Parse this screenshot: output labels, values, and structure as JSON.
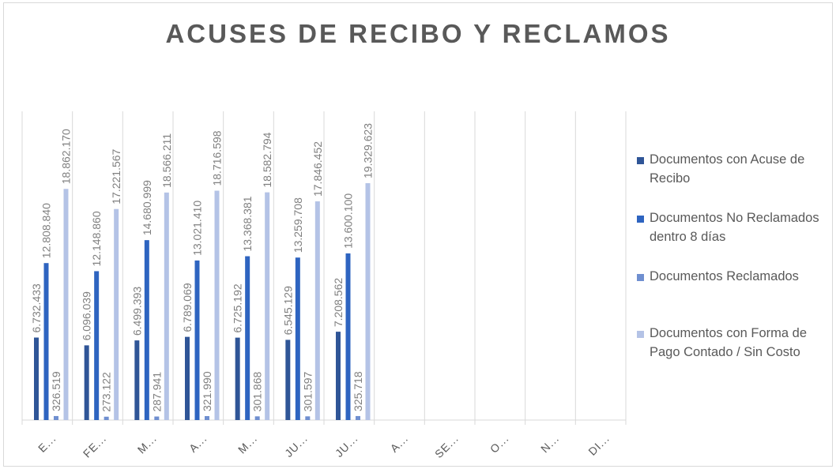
{
  "chart_data": {
    "type": "bar",
    "title": "ACUSES DE RECIBO Y RECLAMOS",
    "categories": [
      "E...",
      "FE...",
      "M...",
      "A...",
      "M...",
      "JU...",
      "JU...",
      "A...",
      "SE...",
      "O...",
      "N...",
      "DI..."
    ],
    "series": [
      {
        "name": "Documentos con Acuse de Recibo",
        "color": "#2f5597",
        "values": [
          6732433,
          6096039,
          6499393,
          6789069,
          6725192,
          6545129,
          7208562,
          null,
          null,
          null,
          null,
          null
        ],
        "labels": [
          "6.732.433",
          "6.096.039",
          "6.499.393",
          "6.789.069",
          "6.725.192",
          "6.545.129",
          "7.208.562",
          "",
          "",
          "",
          "",
          ""
        ]
      },
      {
        "name": "Documentos No Reclamados dentro 8 días",
        "color": "#2e64c0",
        "values": [
          12808840,
          12148860,
          14680999,
          13021410,
          13368381,
          13259708,
          13600100,
          null,
          null,
          null,
          null,
          null
        ],
        "labels": [
          "12.808.840",
          "12.148.860",
          "14.680.999",
          "13.021.410",
          "13.368.381",
          "13.259.708",
          "13.600.100",
          "",
          "",
          "",
          "",
          ""
        ]
      },
      {
        "name": "Documentos Reclamados",
        "color": "#6f8fd0",
        "values": [
          326519,
          273122,
          287941,
          321990,
          301868,
          301597,
          325718,
          null,
          null,
          null,
          null,
          null
        ],
        "labels": [
          "326.519",
          "273.122",
          "287.941",
          "321.990",
          "301.868",
          "301.597",
          "325.718",
          "",
          "",
          "",
          "",
          ""
        ]
      },
      {
        "name": "Documentos con Forma de Pago Contado / Sin Costo",
        "color": "#b4c3e6",
        "values": [
          18862170,
          17221567,
          18566211,
          18716598,
          18582794,
          17846452,
          19329623,
          null,
          null,
          null,
          null,
          null
        ],
        "labels": [
          "18.862.170",
          "17.221.567",
          "18.566.211",
          "18.716.598",
          "18.582.794",
          "17.846.452",
          "19.329.623",
          "",
          "",
          "",
          "",
          ""
        ]
      }
    ],
    "legend_position": "right",
    "grid": "vertical category separators",
    "colors": {
      "title": "#595959",
      "label": "#7f7f7f",
      "gridline": "#d9d9d9"
    }
  }
}
